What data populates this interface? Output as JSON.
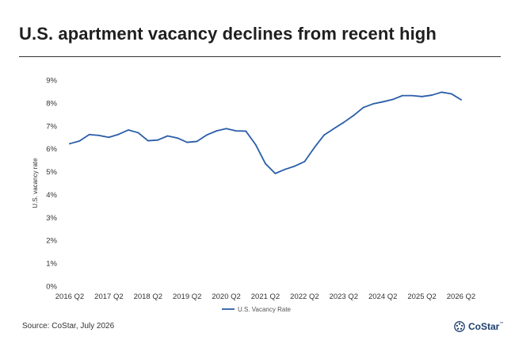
{
  "headline": "U.S. apartment vacancy declines from recent high",
  "source": "Source: CoStar, July 2026",
  "logo": {
    "name": "CoStar",
    "tm": "™",
    "icon": "costar-star-icon",
    "color": "#1c3f6e"
  },
  "chart_data": {
    "type": "line",
    "title": "",
    "ylabel": "U.S. vacancy rate",
    "xlabel": "",
    "ylim": [
      0,
      9
    ],
    "y_ticks": [
      "0%",
      "1%",
      "2%",
      "3%",
      "4%",
      "5%",
      "6%",
      "7%",
      "8%",
      "9%"
    ],
    "y_unit": "%",
    "grid": false,
    "legend_position": "bottom-center",
    "categories": [
      "2016 Q2",
      "2016 Q3",
      "2016 Q4",
      "2017 Q1",
      "2017 Q2",
      "2017 Q3",
      "2017 Q4",
      "2018 Q1",
      "2018 Q2",
      "2018 Q3",
      "2018 Q4",
      "2019 Q1",
      "2019 Q2",
      "2019 Q3",
      "2019 Q4",
      "2020 Q1",
      "2020 Q2",
      "2020 Q3",
      "2020 Q4",
      "2021 Q1",
      "2021 Q2",
      "2021 Q3",
      "2021 Q4",
      "2022 Q1",
      "2022 Q2",
      "2022 Q3",
      "2022 Q4",
      "2023 Q1",
      "2023 Q2",
      "2023 Q3",
      "2023 Q4",
      "2024 Q1",
      "2024 Q2",
      "2024 Q3",
      "2024 Q4",
      "2025 Q1",
      "2025 Q2",
      "2025 Q3",
      "2025 Q4",
      "2026 Q1",
      "2026 Q2"
    ],
    "x_tick_labels": [
      "2016 Q2",
      "2017 Q2",
      "2018 Q2",
      "2019 Q2",
      "2020 Q2",
      "2021 Q2",
      "2022 Q2",
      "2023 Q2",
      "2024 Q2",
      "2025 Q2",
      "2026 Q2"
    ],
    "series": [
      {
        "name": "U.S. Vacancy Rate",
        "color": "#2a5ea8",
        "values": [
          6.22,
          6.34,
          6.62,
          6.58,
          6.5,
          6.63,
          6.82,
          6.7,
          6.35,
          6.38,
          6.56,
          6.47,
          6.28,
          6.32,
          6.6,
          6.78,
          6.88,
          6.78,
          6.77,
          6.18,
          5.35,
          4.92,
          5.1,
          5.24,
          5.44,
          6.05,
          6.6,
          6.88,
          7.15,
          7.45,
          7.8,
          7.96,
          8.05,
          8.15,
          8.32,
          8.32,
          8.28,
          8.34,
          8.47,
          8.4,
          8.14
        ]
      }
    ]
  }
}
